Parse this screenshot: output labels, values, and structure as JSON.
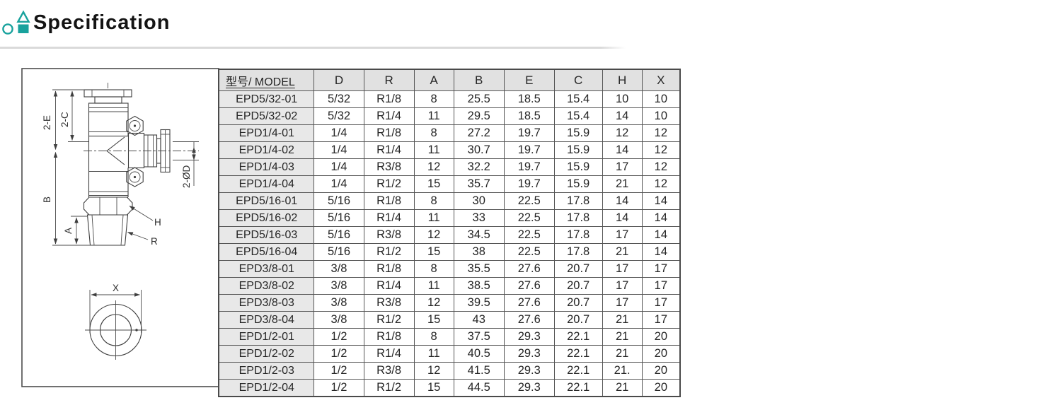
{
  "header": {
    "title": "Specification",
    "accent_color": "#18a29d"
  },
  "drawing": {
    "labels": {
      "dim_2e": "2-E",
      "dim_2c": "2-C",
      "dim_b": "B",
      "dim_a": "A",
      "dim_h": "H",
      "dim_r": "R",
      "dim_x": "X",
      "dim_2od": "2-ØD"
    }
  },
  "table": {
    "columns": [
      "型号/ MODEL",
      "D",
      "R",
      "A",
      "B",
      "E",
      "C",
      "H",
      "X"
    ],
    "col_widths_pct": [
      20.7,
      10.75,
      10.9,
      8.6,
      10.9,
      10.9,
      10.4,
      8.6,
      8.25
    ],
    "rows": [
      [
        "EPD5/32-01",
        "5/32",
        "R1/8",
        "8",
        "25.5",
        "18.5",
        "15.4",
        "10",
        "10"
      ],
      [
        "EPD5/32-02",
        "5/32",
        "R1/4",
        "11",
        "29.5",
        "18.5",
        "15.4",
        "14",
        "10"
      ],
      [
        "EPD1/4-01",
        "1/4",
        "R1/8",
        "8",
        "27.2",
        "19.7",
        "15.9",
        "12",
        "12"
      ],
      [
        "EPD1/4-02",
        "1/4",
        "R1/4",
        "11",
        "30.7",
        "19.7",
        "15.9",
        "14",
        "12"
      ],
      [
        "EPD1/4-03",
        "1/4",
        "R3/8",
        "12",
        "32.2",
        "19.7",
        "15.9",
        "17",
        "12"
      ],
      [
        "EPD1/4-04",
        "1/4",
        "R1/2",
        "15",
        "35.7",
        "19.7",
        "15.9",
        "21",
        "12"
      ],
      [
        "EPD5/16-01",
        "5/16",
        "R1/8",
        "8",
        "30",
        "22.5",
        "17.8",
        "14",
        "14"
      ],
      [
        "EPD5/16-02",
        "5/16",
        "R1/4",
        "11",
        "33",
        "22.5",
        "17.8",
        "14",
        "14"
      ],
      [
        "EPD5/16-03",
        "5/16",
        "R3/8",
        "12",
        "34.5",
        "22.5",
        "17.8",
        "17",
        "14"
      ],
      [
        "EPD5/16-04",
        "5/16",
        "R1/2",
        "15",
        "38",
        "22.5",
        "17.8",
        "21",
        "14"
      ],
      [
        "EPD3/8-01",
        "3/8",
        "R1/8",
        "8",
        "35.5",
        "27.6",
        "20.7",
        "17",
        "17"
      ],
      [
        "EPD3/8-02",
        "3/8",
        "R1/4",
        "11",
        "38.5",
        "27.6",
        "20.7",
        "17",
        "17"
      ],
      [
        "EPD3/8-03",
        "3/8",
        "R3/8",
        "12",
        "39.5",
        "27.6",
        "20.7",
        "17",
        "17"
      ],
      [
        "EPD3/8-04",
        "3/8",
        "R1/2",
        "15",
        "43",
        "27.6",
        "20.7",
        "21",
        "17"
      ],
      [
        "EPD1/2-01",
        "1/2",
        "R1/8",
        "8",
        "37.5",
        "29.3",
        "22.1",
        "21",
        "20"
      ],
      [
        "EPD1/2-02",
        "1/2",
        "R1/4",
        "11",
        "40.5",
        "29.3",
        "22.1",
        "21",
        "20"
      ],
      [
        "EPD1/2-03",
        "1/2",
        "R3/8",
        "12",
        "41.5",
        "29.3",
        "22.1",
        "21.",
        "20"
      ],
      [
        "EPD1/2-04",
        "1/2",
        "R1/2",
        "15",
        "44.5",
        "29.3",
        "22.1",
        "21",
        "20"
      ]
    ]
  }
}
